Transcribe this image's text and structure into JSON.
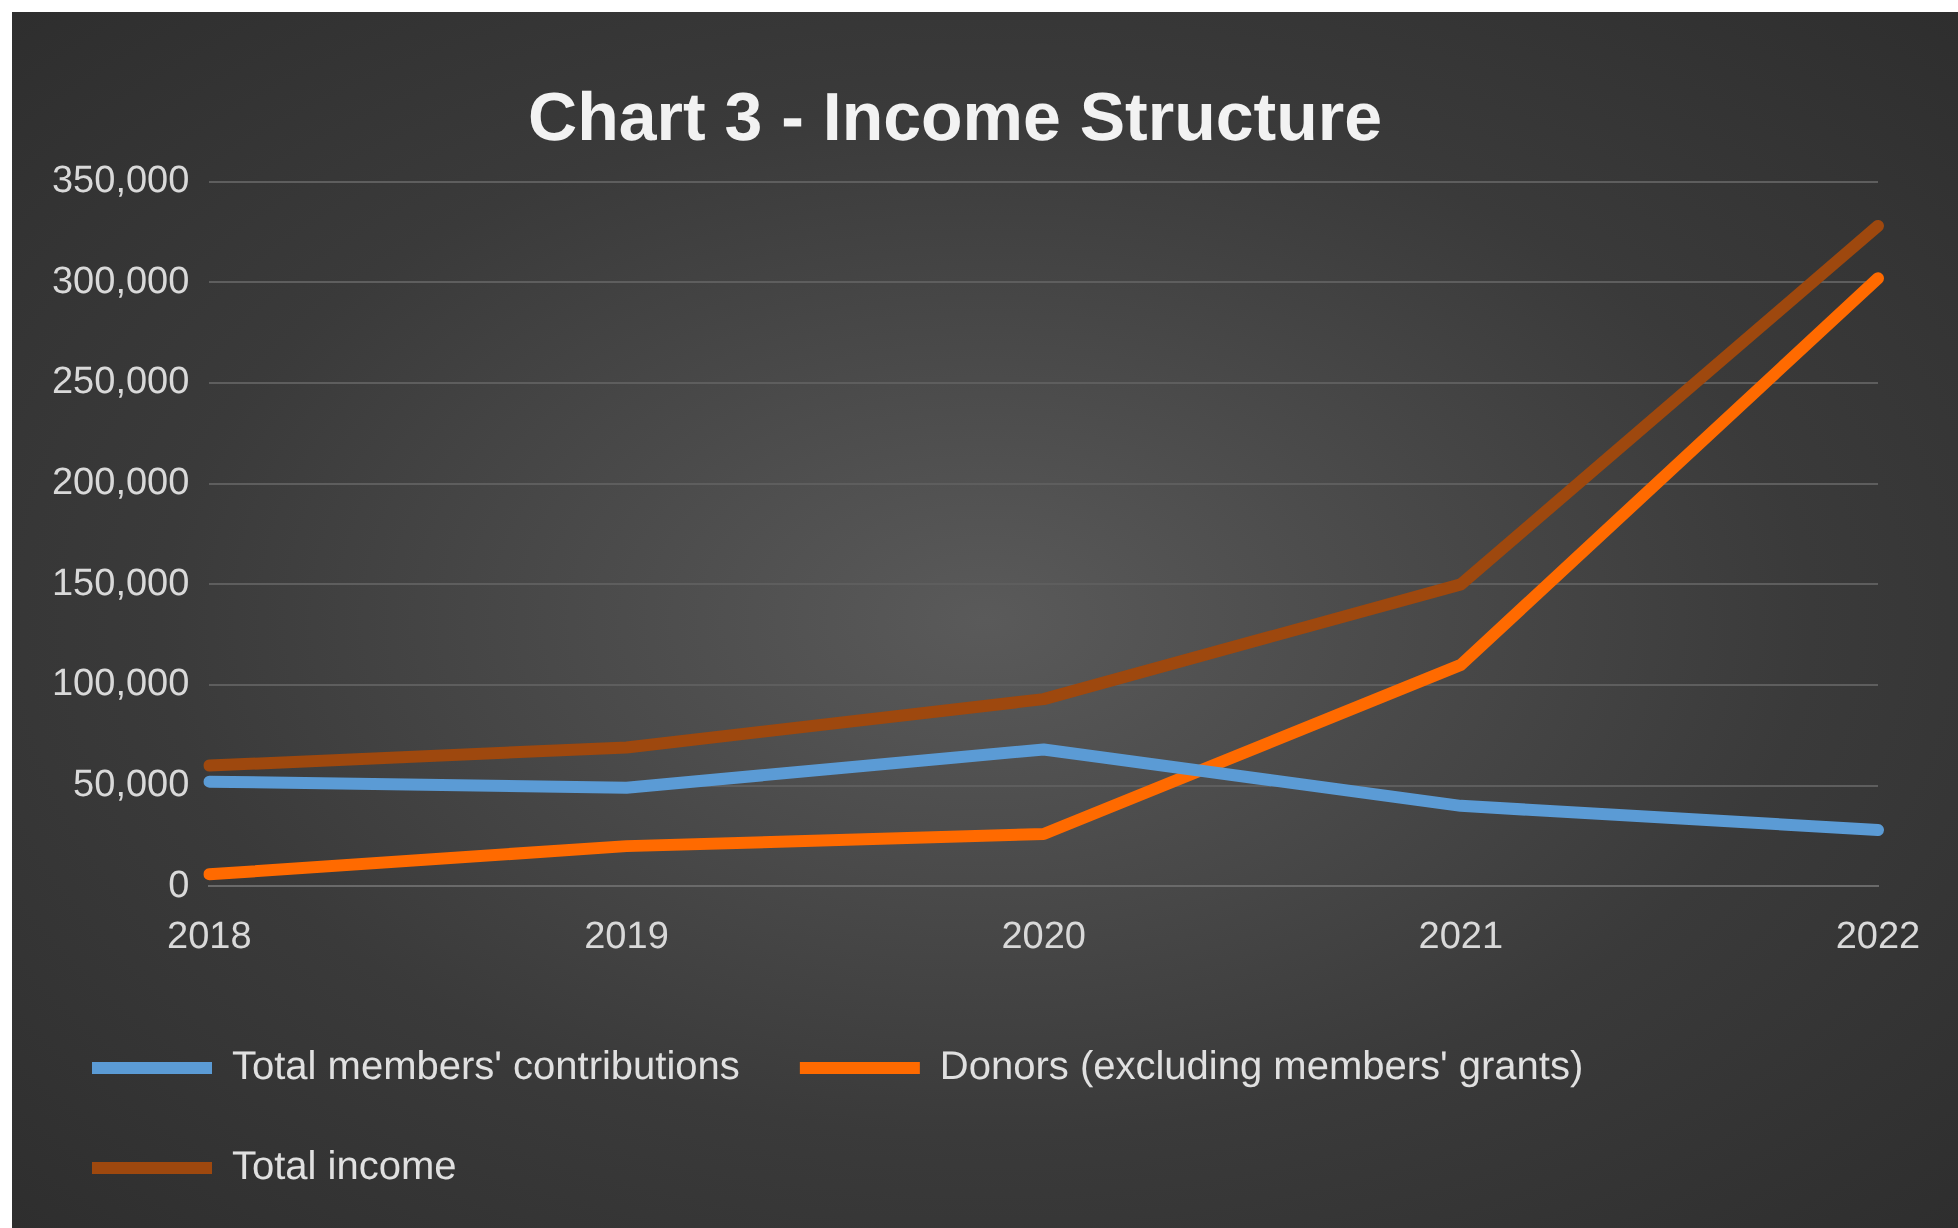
{
  "chart_data": {
    "type": "line",
    "title": "Chart 3 - Income Structure",
    "categories": [
      "2018",
      "2019",
      "2020",
      "2021",
      "2022"
    ],
    "series": [
      {
        "name": "Total members' contributions",
        "color": "#5b9bd5",
        "values": [
          52000,
          49000,
          68000,
          40000,
          28000
        ]
      },
      {
        "name": "Donors (excluding members' grants)",
        "color": "#ff6a00",
        "values": [
          6000,
          20000,
          26000,
          110000,
          302000
        ]
      },
      {
        "name": "Total income",
        "color": "#9e480e",
        "values": [
          60000,
          69000,
          93000,
          150000,
          328000
        ]
      }
    ],
    "ylim": [
      0,
      350000
    ],
    "yticks": [
      {
        "value": 0,
        "label": "0"
      },
      {
        "value": 50000,
        "label": "50,000"
      },
      {
        "value": 100000,
        "label": "100,000"
      },
      {
        "value": 150000,
        "label": "150,000"
      },
      {
        "value": 200000,
        "label": "200,000"
      },
      {
        "value": 250000,
        "label": "250,000"
      },
      {
        "value": 300000,
        "label": "300,000"
      },
      {
        "value": 350000,
        "label": "350,000"
      }
    ],
    "grid": "y",
    "legend": "bottom",
    "marker": "none",
    "line_style": "solid"
  }
}
